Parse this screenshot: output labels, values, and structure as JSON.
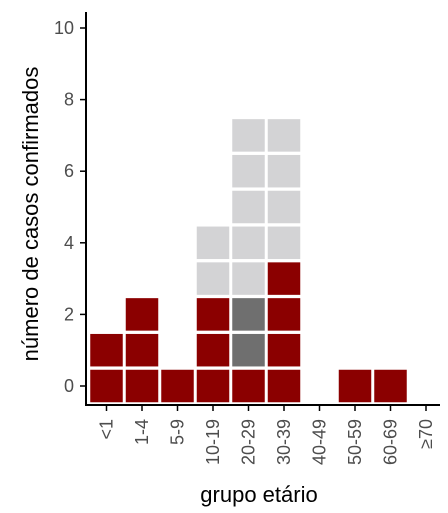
{
  "chart_data": {
    "type": "waffle",
    "xlabel": "grupo etário",
    "ylabel": "número de casos confirmados",
    "ylim": [
      0,
      10
    ],
    "y_ticks": [
      0,
      2,
      4,
      6,
      8,
      10
    ],
    "categories": [
      "<1",
      "1-4",
      "5-9",
      "10-19",
      "20-29",
      "30-39",
      "40-49",
      "50-59",
      "60-69",
      "≥70"
    ],
    "series": [
      {
        "key": "red",
        "values": [
          2,
          3,
          1,
          3,
          1,
          4,
          0,
          1,
          1,
          0
        ]
      },
      {
        "key": "dark_gray",
        "values": [
          0,
          0,
          0,
          0,
          2,
          0,
          0,
          0,
          0,
          0
        ]
      },
      {
        "key": "light_gray",
        "values": [
          0,
          0,
          0,
          2,
          5,
          4,
          0,
          0,
          0,
          0
        ]
      }
    ],
    "colors": {
      "red": "#8b0000",
      "dark_gray": "#6f6f6f",
      "light_gray": "#d3d3d5",
      "axis": "#000000",
      "tick_text": "#4d4d4d"
    },
    "grid": false
  }
}
